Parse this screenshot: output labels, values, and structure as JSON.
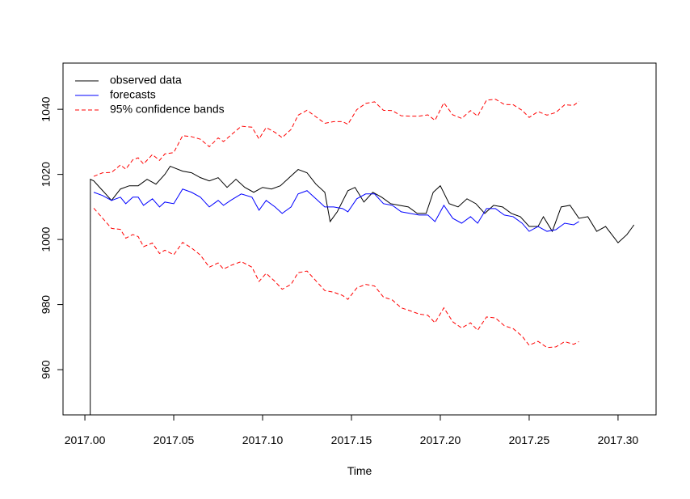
{
  "chart_data": {
    "type": "line",
    "xlabel": "Time",
    "xlim": [
      2016.9877,
      2017.3214
    ],
    "ylim": [
      946.1,
      1054.2
    ],
    "xticks": [
      {
        "value": 2017.0,
        "label": "2017.00"
      },
      2017.05,
      {
        "value": 2017.1,
        "label": "2017.10"
      },
      2017.15,
      {
        "value": 2017.2,
        "label": "2017.20"
      },
      2017.25,
      {
        "value": 2017.3,
        "label": "2017.30"
      }
    ],
    "yticks": [
      960,
      980,
      1000,
      1020,
      1040
    ],
    "legend": "top-left",
    "series": [
      {
        "name": "observed data",
        "color": "#000000",
        "dash": false,
        "x": [
          2017.003,
          2017.0031,
          2017.005,
          2017.01,
          2017.015,
          2017.02,
          2017.025,
          2017.03,
          2017.035,
          2017.04,
          2017.045,
          2017.048,
          2017.055,
          2017.06,
          2017.065,
          2017.07,
          2017.075,
          2017.08,
          2017.085,
          2017.09,
          2017.095,
          2017.1,
          2017.105,
          2017.11,
          2017.115,
          2017.12,
          2017.125,
          2017.13,
          2017.135,
          2017.138,
          2017.142,
          2017.148,
          2017.152,
          2017.157,
          2017.162,
          2017.167,
          2017.172,
          2017.177,
          2017.182,
          2017.187,
          2017.192,
          2017.196,
          2017.2,
          2017.205,
          2017.21,
          2017.215,
          2017.22,
          2017.225,
          2017.23,
          2017.235,
          2017.24,
          2017.245,
          2017.25,
          2017.255,
          2017.258,
          2017.263,
          2017.268,
          2017.273,
          2017.278,
          2017.283,
          2017.288,
          2017.293,
          2017.3,
          2017.305,
          2017.309
        ],
        "values": [
          930,
          1018.5,
          1018,
          1015,
          1012,
          1015.5,
          1016.5,
          1016.5,
          1018.5,
          1017,
          1020,
          1022.5,
          1021,
          1020.5,
          1019,
          1018,
          1019,
          1016,
          1018.5,
          1016,
          1014.5,
          1016,
          1015.5,
          1016.5,
          1019,
          1021.5,
          1020.5,
          1017,
          1014.5,
          1005.5,
          1008.5,
          1015,
          1016,
          1011.5,
          1014.5,
          1013,
          1011,
          1010.5,
          1010,
          1008,
          1008,
          1014.5,
          1016.5,
          1011,
          1010,
          1012.5,
          1011,
          1008,
          1010.5,
          1010,
          1008,
          1007,
          1004,
          1004,
          1007,
          1002.5,
          1010,
          1010.5,
          1006.5,
          1007,
          1002.5,
          1004,
          999,
          1001.5,
          1004.5
        ]
      },
      {
        "name": "forecasts",
        "color": "#0000ff",
        "dash": false,
        "x": [
          2017.005,
          2017.01,
          2017.015,
          2017.02,
          2017.023,
          2017.027,
          2017.03,
          2017.033,
          2017.038,
          2017.042,
          2017.045,
          2017.05,
          2017.055,
          2017.06,
          2017.065,
          2017.07,
          2017.075,
          2017.078,
          2017.082,
          2017.088,
          2017.094,
          2017.098,
          2017.102,
          2017.107,
          2017.111,
          2017.116,
          2017.12,
          2017.125,
          2017.13,
          2017.135,
          2017.14,
          2017.145,
          2017.148,
          2017.153,
          2017.158,
          2017.163,
          2017.168,
          2017.173,
          2017.178,
          2017.183,
          2017.188,
          2017.193,
          2017.197,
          2017.202,
          2017.207,
          2017.212,
          2017.217,
          2017.221,
          2017.226,
          2017.231,
          2017.236,
          2017.241,
          2017.246,
          2017.25,
          2017.255,
          2017.26,
          2017.265,
          2017.27,
          2017.275,
          2017.278
        ],
        "values": [
          1014.5,
          1013.5,
          1012,
          1013,
          1011,
          1013,
          1013,
          1010.5,
          1012.5,
          1010,
          1011.5,
          1011,
          1015.5,
          1014.5,
          1013,
          1010,
          1012,
          1010.5,
          1012,
          1014,
          1013,
          1009,
          1012,
          1010,
          1008,
          1010,
          1014,
          1015,
          1012.5,
          1010,
          1010,
          1009.5,
          1008.5,
          1012.5,
          1014,
          1014,
          1011,
          1010.5,
          1008.5,
          1008,
          1007.5,
          1007.5,
          1005.5,
          1010.5,
          1006.5,
          1005,
          1007,
          1005,
          1009.5,
          1009.5,
          1007.5,
          1007,
          1005,
          1002.5,
          1004,
          1002.5,
          1003,
          1005,
          1004.5,
          1005.5
        ]
      },
      {
        "name": "95% confidence bands",
        "color": "#ff0000",
        "dash": true,
        "x": [
          2017.005,
          2017.01,
          2017.015,
          2017.02,
          2017.023,
          2017.027,
          2017.03,
          2017.033,
          2017.038,
          2017.042,
          2017.045,
          2017.05,
          2017.055,
          2017.06,
          2017.065,
          2017.07,
          2017.075,
          2017.078,
          2017.082,
          2017.088,
          2017.094,
          2017.098,
          2017.102,
          2017.107,
          2017.111,
          2017.116,
          2017.12,
          2017.125,
          2017.13,
          2017.135,
          2017.14,
          2017.145,
          2017.148,
          2017.153,
          2017.158,
          2017.163,
          2017.168,
          2017.173,
          2017.178,
          2017.183,
          2017.188,
          2017.193,
          2017.197,
          2017.202,
          2017.207,
          2017.212,
          2017.217,
          2017.221,
          2017.226,
          2017.231,
          2017.236,
          2017.241,
          2017.246,
          2017.25,
          2017.255,
          2017.26,
          2017.265,
          2017.27,
          2017.275,
          2017.278
        ],
        "values": [
          1019.4,
          1020.5,
          1020.6,
          1022.9,
          1021.6,
          1024.5,
          1025.1,
          1023.2,
          1026.1,
          1024.3,
          1026.3,
          1026.7,
          1031.9,
          1031.6,
          1030.8,
          1028.5,
          1031.2,
          1030.1,
          1032,
          1034.8,
          1034.5,
          1030.9,
          1034.4,
          1032.9,
          1031.3,
          1033.8,
          1038.2,
          1039.7,
          1037.7,
          1035.7,
          1036.2,
          1036.2,
          1035.4,
          1039.9,
          1041.8,
          1042.3,
          1039.7,
          1039.6,
          1038,
          1037.9,
          1037.9,
          1038.3,
          1036.6,
          1042,
          1038.3,
          1037.2,
          1039.6,
          1037.9,
          1042.8,
          1043.1,
          1041.5,
          1041.4,
          1039.7,
          1037.5,
          1039.3,
          1038.2,
          1039,
          1041.4,
          1041.2,
          1042.4
        ],
        "lower": [
          1009.6,
          1006.5,
          1003.4,
          1003.1,
          1000.4,
          1001.5,
          1000.9,
          997.8,
          998.9,
          995.7,
          996.7,
          995.3,
          999.1,
          997.4,
          995.2,
          991.5,
          992.8,
          990.9,
          992,
          993.2,
          991.5,
          987.1,
          989.6,
          987.1,
          984.7,
          986.2,
          989.8,
          990.3,
          987.3,
          984.3,
          983.8,
          982.8,
          981.6,
          985.1,
          986.2,
          985.7,
          982.3,
          981.4,
          979,
          978.1,
          977.1,
          976.7,
          974.4,
          979,
          974.7,
          972.8,
          974.4,
          972.1,
          976.2,
          975.9,
          973.5,
          972.6,
          970.3,
          967.5,
          968.7,
          966.8,
          967,
          968.6,
          967.8,
          968.6
        ]
      }
    ]
  }
}
